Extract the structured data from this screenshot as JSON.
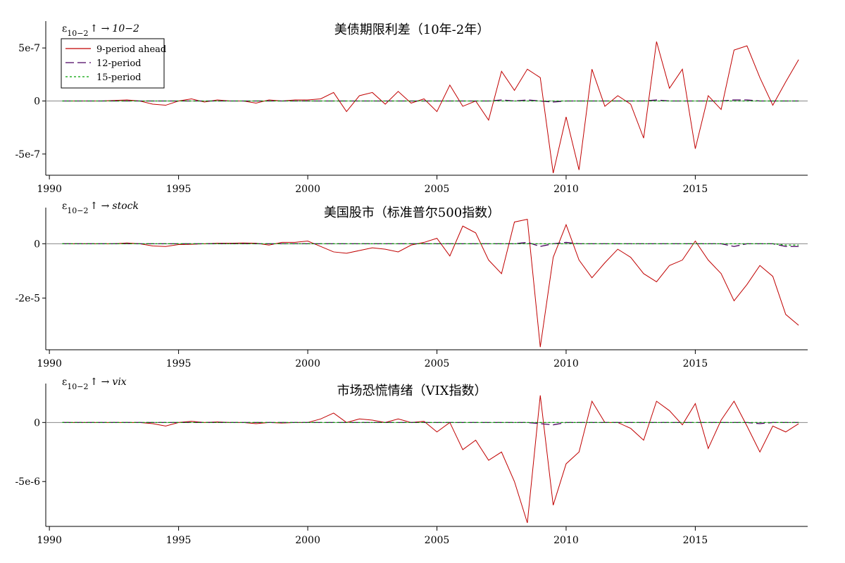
{
  "chart_data": [
    {
      "type": "line",
      "title": "美债期限利差（10年-2年）",
      "annotation": {
        "symbol": "ε",
        "subscript": "10−2",
        "arrow": "↑ →",
        "target": "10−2"
      },
      "legend": "upper left",
      "x": [
        1990.5,
        1991,
        1991.5,
        1992,
        1992.5,
        1993,
        1993.5,
        1994,
        1994.5,
        1995,
        1995.5,
        1996,
        1996.5,
        1997,
        1997.5,
        1998,
        1998.5,
        1999,
        1999.5,
        2000,
        2000.5,
        2001,
        2001.5,
        2002,
        2002.5,
        2003,
        2003.5,
        2004,
        2004.5,
        2005,
        2005.5,
        2006,
        2006.5,
        2007,
        2007.5,
        2008,
        2008.5,
        2009,
        2009.5,
        2010,
        2010.5,
        2011,
        2011.5,
        2012,
        2012.5,
        2013,
        2013.5,
        2014,
        2014.5,
        2015,
        2015.5,
        2016,
        2016.5,
        2017,
        2017.5,
        2018,
        2018.5,
        2019
      ],
      "xlim": [
        1989.86,
        2019.35
      ],
      "xticks": [
        1990,
        1995,
        2000,
        2005,
        2010,
        2015
      ],
      "ylim": [
        -7e-07,
        7.2e-07
      ],
      "yticks": [
        {
          "value": 5e-07,
          "label": "5e-7"
        },
        0,
        {
          "value": -5e-07,
          "label": "-5e-7"
        }
      ],
      "series": [
        {
          "name": "9-period ahead",
          "color": "#c00000",
          "style": "solid",
          "values": [
            0,
            0,
            0,
            0,
            5e-09,
            1e-08,
            0,
            -3e-08,
            -4e-08,
            0,
            2e-08,
            -1e-08,
            1e-08,
            0,
            0,
            -2e-08,
            1e-08,
            0,
            1e-08,
            1e-08,
            2e-08,
            8e-08,
            -1e-07,
            5e-08,
            8e-08,
            -3e-08,
            9e-08,
            -2e-08,
            2e-08,
            -1e-07,
            1.5e-07,
            -5e-08,
            0,
            -1.8e-07,
            2.8e-07,
            1e-07,
            3e-07,
            2.2e-07,
            -6.8e-07,
            -1.5e-07,
            -6.5e-07,
            3e-07,
            -5e-08,
            5e-08,
            -3e-08,
            -3.5e-07,
            5.6e-07,
            1.2e-07,
            3e-07,
            -4.5e-07,
            5e-08,
            -8e-08,
            4.8e-07,
            5.2e-07,
            2.2e-07,
            -4e-08,
            1.8e-07,
            3.9e-07
          ]
        },
        {
          "name": "12-period",
          "color": "#4b0060",
          "style": "dashed",
          "values": [
            0,
            0,
            0,
            0,
            0,
            0,
            0,
            0,
            0,
            0,
            0,
            0,
            0,
            0,
            0,
            0,
            0,
            0,
            0,
            0,
            0,
            0,
            0,
            0,
            0,
            0,
            0,
            0,
            0,
            0,
            0,
            0,
            0,
            0,
            1e-08,
            0,
            1e-08,
            0,
            -1e-08,
            0,
            0,
            0,
            0,
            0,
            0,
            0,
            1e-08,
            0,
            0,
            0,
            0,
            0,
            1e-08,
            1e-08,
            0,
            0,
            0,
            0
          ]
        },
        {
          "name": "15-period",
          "color": "#00a000",
          "style": "dotted",
          "values": [
            0,
            0,
            0,
            0,
            0,
            0,
            0,
            0,
            0,
            0,
            0,
            0,
            0,
            0,
            0,
            0,
            0,
            0,
            0,
            0,
            0,
            0,
            0,
            0,
            0,
            0,
            0,
            0,
            0,
            0,
            0,
            0,
            0,
            0,
            0,
            0,
            0,
            0,
            0,
            0,
            0,
            0,
            0,
            0,
            0,
            0,
            0,
            0,
            0,
            0,
            0,
            0,
            0,
            0,
            0,
            0,
            0,
            0
          ]
        }
      ]
    },
    {
      "type": "line",
      "title": "美国股市（标准普尔500指数）",
      "annotation": {
        "symbol": "ε",
        "subscript": "10−2",
        "arrow": "↑ →",
        "target": "stock"
      },
      "x": [
        1990.5,
        1991,
        1991.5,
        1992,
        1992.5,
        1993,
        1993.5,
        1994,
        1994.5,
        1995,
        1995.5,
        1996,
        1996.5,
        1997,
        1997.5,
        1998,
        1998.5,
        1999,
        1999.5,
        2000,
        2000.5,
        2001,
        2001.5,
        2002,
        2002.5,
        2003,
        2003.5,
        2004,
        2004.5,
        2005,
        2005.5,
        2006,
        2006.5,
        2007,
        2007.5,
        2008,
        2008.5,
        2009,
        2009.5,
        2010,
        2010.5,
        2011,
        2011.5,
        2012,
        2012.5,
        2013,
        2013.5,
        2014,
        2014.5,
        2015,
        2015.5,
        2016,
        2016.5,
        2017,
        2017.5,
        2018,
        2018.5,
        2019
      ],
      "xlim": [
        1989.86,
        2019.35
      ],
      "xticks": [
        1990,
        1995,
        2000,
        2005,
        2010,
        2015
      ],
      "ylim": [
        -3.9e-05,
        1.2e-05
      ],
      "yticks": [
        0,
        {
          "value": -2e-05,
          "label": "-2e-5"
        }
      ],
      "series": [
        {
          "color": "#c00000",
          "style": "solid",
          "values": [
            0,
            0,
            0,
            0,
            0,
            3e-07,
            0,
            -8e-07,
            -1e-06,
            -3e-07,
            -2e-07,
            0,
            2e-07,
            2e-07,
            3e-07,
            2e-07,
            -5e-07,
            5e-07,
            5e-07,
            1e-06,
            -1e-06,
            -3e-06,
            -3.5e-06,
            -2.5e-06,
            -1.5e-06,
            -2e-06,
            -3e-06,
            -5e-07,
            5e-07,
            2e-06,
            -4.5e-06,
            6.5e-06,
            4e-06,
            -6e-06,
            -1.1e-05,
            8e-06,
            9e-06,
            -3.8e-05,
            -5e-06,
            7e-06,
            -6e-06,
            -1.25e-05,
            -7e-06,
            -2e-06,
            -5e-06,
            -1.1e-05,
            -1.4e-05,
            -8e-06,
            -6e-06,
            1e-06,
            -6e-06,
            -1.1e-05,
            -2.1e-05,
            -1.5e-05,
            -8e-06,
            -1.2e-05,
            -2.6e-05,
            -3e-05
          ]
        },
        {
          "color": "#4b0060",
          "style": "dashed",
          "values": [
            0,
            0,
            0,
            0,
            0,
            0,
            0,
            0,
            0,
            0,
            0,
            0,
            0,
            0,
            0,
            0,
            0,
            0,
            0,
            0,
            0,
            0,
            0,
            0,
            0,
            0,
            0,
            0,
            0,
            0,
            0,
            0,
            0,
            0,
            0,
            0,
            5e-07,
            -1e-06,
            0,
            5e-07,
            0,
            0,
            0,
            0,
            0,
            0,
            0,
            0,
            0,
            0,
            0,
            0,
            -1e-06,
            0,
            0,
            0,
            -1e-06,
            -1e-06
          ]
        },
        {
          "color": "#00a000",
          "style": "dotted",
          "values": [
            0,
            0,
            0,
            0,
            0,
            0,
            0,
            0,
            0,
            0,
            0,
            0,
            0,
            0,
            0,
            0,
            0,
            0,
            0,
            0,
            0,
            0,
            0,
            0,
            0,
            0,
            0,
            0,
            0,
            0,
            0,
            0,
            0,
            0,
            0,
            0,
            0,
            0,
            0,
            0,
            0,
            0,
            0,
            0,
            0,
            0,
            0,
            0,
            0,
            0,
            0,
            0,
            0,
            0,
            0,
            0,
            -5e-07,
            -5e-07
          ]
        }
      ]
    },
    {
      "type": "line",
      "title": "市场恐慌情绪（VIX指数）",
      "annotation": {
        "symbol": "ε",
        "subscript": "10−2",
        "arrow": "↑ →",
        "target": "vix"
      },
      "x": [
        1990.5,
        1991,
        1991.5,
        1992,
        1992.5,
        1993,
        1993.5,
        1994,
        1994.5,
        1995,
        1995.5,
        1996,
        1996.5,
        1997,
        1997.5,
        1998,
        1998.5,
        1999,
        1999.5,
        2000,
        2000.5,
        2001,
        2001.5,
        2002,
        2002.5,
        2003,
        2003.5,
        2004,
        2004.5,
        2005,
        2005.5,
        2006,
        2006.5,
        2007,
        2007.5,
        2008,
        2008.5,
        2009,
        2009.5,
        2010,
        2010.5,
        2011,
        2011.5,
        2012,
        2012.5,
        2013,
        2013.5,
        2014,
        2014.5,
        2015,
        2015.5,
        2016,
        2016.5,
        2017,
        2017.5,
        2018,
        2018.5,
        2019
      ],
      "xlim": [
        1989.86,
        2019.35
      ],
      "xticks": [
        1990,
        1995,
        2000,
        2005,
        2010,
        2015
      ],
      "ylim": [
        -8.8e-06,
        3e-06
      ],
      "yticks": [
        0,
        {
          "value": -5e-06,
          "label": "-5e-6"
        }
      ],
      "series": [
        {
          "color": "#c00000",
          "style": "solid",
          "values": [
            0,
            0,
            0,
            0,
            0,
            0,
            0,
            -1e-07,
            -3e-07,
            0,
            1e-07,
            0,
            5e-08,
            0,
            0,
            -1e-07,
            0,
            -5e-08,
            0,
            0,
            3e-07,
            8e-07,
            0,
            3e-07,
            2e-07,
            0,
            3e-07,
            0,
            1e-07,
            -8e-07,
            0,
            -2.3e-06,
            -1.5e-06,
            -3.2e-06,
            -2.5e-06,
            -5e-06,
            -8.5e-06,
            2.3e-06,
            -7e-06,
            -3.5e-06,
            -2.5e-06,
            1.8e-06,
            0,
            0,
            -5e-07,
            -1.5e-06,
            1.8e-06,
            1e-06,
            -2e-07,
            1.6e-06,
            -2.2e-06,
            2e-07,
            1.8e-06,
            -3e-07,
            -2.5e-06,
            -3e-07,
            -8e-07,
            -1e-07
          ]
        },
        {
          "color": "#4b0060",
          "style": "dashed",
          "values": [
            0,
            0,
            0,
            0,
            0,
            0,
            0,
            0,
            0,
            0,
            0,
            0,
            0,
            0,
            0,
            0,
            0,
            0,
            0,
            0,
            0,
            0,
            0,
            0,
            0,
            0,
            0,
            0,
            0,
            0,
            0,
            0,
            0,
            0,
            0,
            0,
            0,
            -1e-07,
            -2e-07,
            0,
            0,
            0,
            0,
            0,
            0,
            0,
            0,
            0,
            0,
            0,
            0,
            0,
            0,
            0,
            -1e-07,
            0,
            0,
            0
          ]
        },
        {
          "color": "#00a000",
          "style": "dotted",
          "values": [
            0,
            0,
            0,
            0,
            0,
            0,
            0,
            0,
            0,
            0,
            0,
            0,
            0,
            0,
            0,
            0,
            0,
            0,
            0,
            0,
            0,
            0,
            0,
            0,
            0,
            0,
            0,
            0,
            0,
            0,
            0,
            0,
            0,
            0,
            0,
            0,
            0,
            0,
            0,
            0,
            0,
            0,
            0,
            0,
            0,
            0,
            0,
            0,
            0,
            0,
            0,
            0,
            0,
            0,
            0,
            0,
            0,
            0
          ]
        }
      ]
    }
  ]
}
